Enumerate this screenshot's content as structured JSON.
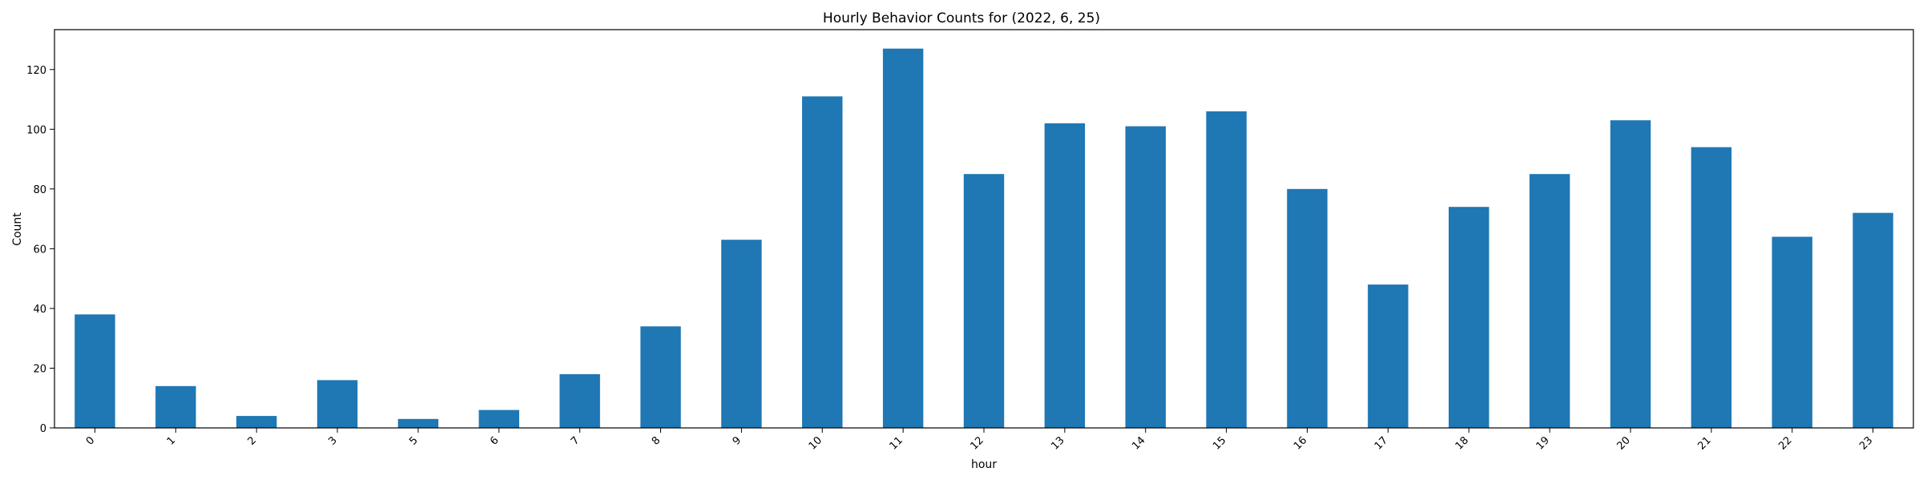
{
  "chart_data": {
    "type": "bar",
    "title": "Hourly Behavior Counts for (2022, 6, 25)",
    "xlabel": "hour",
    "ylabel": "Count",
    "categories": [
      "0",
      "1",
      "2",
      "3",
      "5",
      "6",
      "7",
      "8",
      "9",
      "10",
      "11",
      "12",
      "13",
      "14",
      "15",
      "16",
      "17",
      "18",
      "19",
      "20",
      "21",
      "22",
      "23"
    ],
    "values": [
      38,
      14,
      4,
      16,
      3,
      6,
      18,
      34,
      63,
      111,
      127,
      85,
      102,
      101,
      106,
      80,
      48,
      74,
      85,
      103,
      94,
      64,
      72
    ],
    "ylim": [
      0,
      133.35
    ],
    "yticks": [
      0,
      20,
      40,
      60,
      80,
      100,
      120
    ],
    "bar_color": "#1f77b4",
    "grid": false,
    "legend": "none"
  }
}
